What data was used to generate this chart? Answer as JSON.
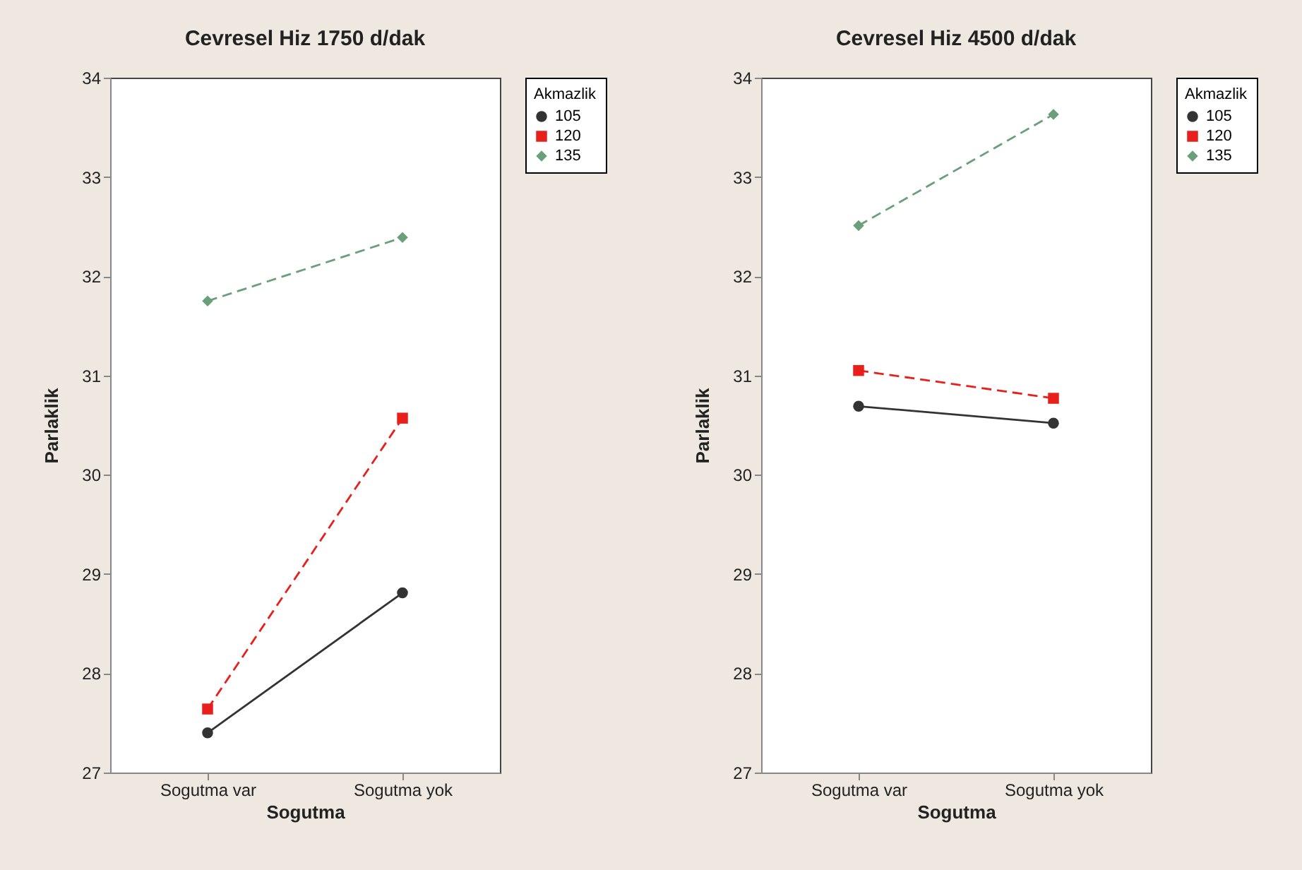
{
  "chart_data": [
    {
      "type": "line",
      "title": "Cevresel Hiz 1750 d/dak",
      "xlabel": "Sogutma",
      "ylabel": "Parlaklik",
      "legend_title": "Akmazlik",
      "legend": "top right",
      "grid": false,
      "categories": [
        "Sogutma var",
        "Sogutma yok"
      ],
      "ylim": [
        27,
        34
      ],
      "yticks": [
        27,
        28,
        29,
        30,
        31,
        32,
        33,
        34
      ],
      "series": [
        {
          "name": "105",
          "color": "#333333",
          "marker": "circle",
          "line_style": "solid",
          "values": [
            27.4,
            28.81
          ]
        },
        {
          "name": "120",
          "color": "#e8201c",
          "marker": "square",
          "line_style": "dashed",
          "values": [
            27.64,
            30.57
          ]
        },
        {
          "name": "135",
          "color": "#6a9f7a",
          "marker": "diamond",
          "line_style": "dashed",
          "values": [
            31.75,
            32.39
          ]
        }
      ]
    },
    {
      "type": "line",
      "title": "Cevresel Hiz 4500 d/dak",
      "xlabel": "Sogutma",
      "ylabel": "Parlaklik",
      "legend_title": "Akmazlik",
      "legend": "top right",
      "grid": false,
      "categories": [
        "Sogutma var",
        "Sogutma yok"
      ],
      "ylim": [
        27,
        34
      ],
      "yticks": [
        27,
        28,
        29,
        30,
        31,
        32,
        33,
        34
      ],
      "series": [
        {
          "name": "105",
          "color": "#333333",
          "marker": "circle",
          "line_style": "solid",
          "values": [
            30.69,
            30.52
          ]
        },
        {
          "name": "120",
          "color": "#e8201c",
          "marker": "square",
          "line_style": "dashed",
          "values": [
            31.05,
            30.77
          ]
        },
        {
          "name": "135",
          "color": "#6a9f7a",
          "marker": "diamond",
          "line_style": "dashed",
          "values": [
            32.51,
            33.63
          ]
        }
      ]
    }
  ]
}
